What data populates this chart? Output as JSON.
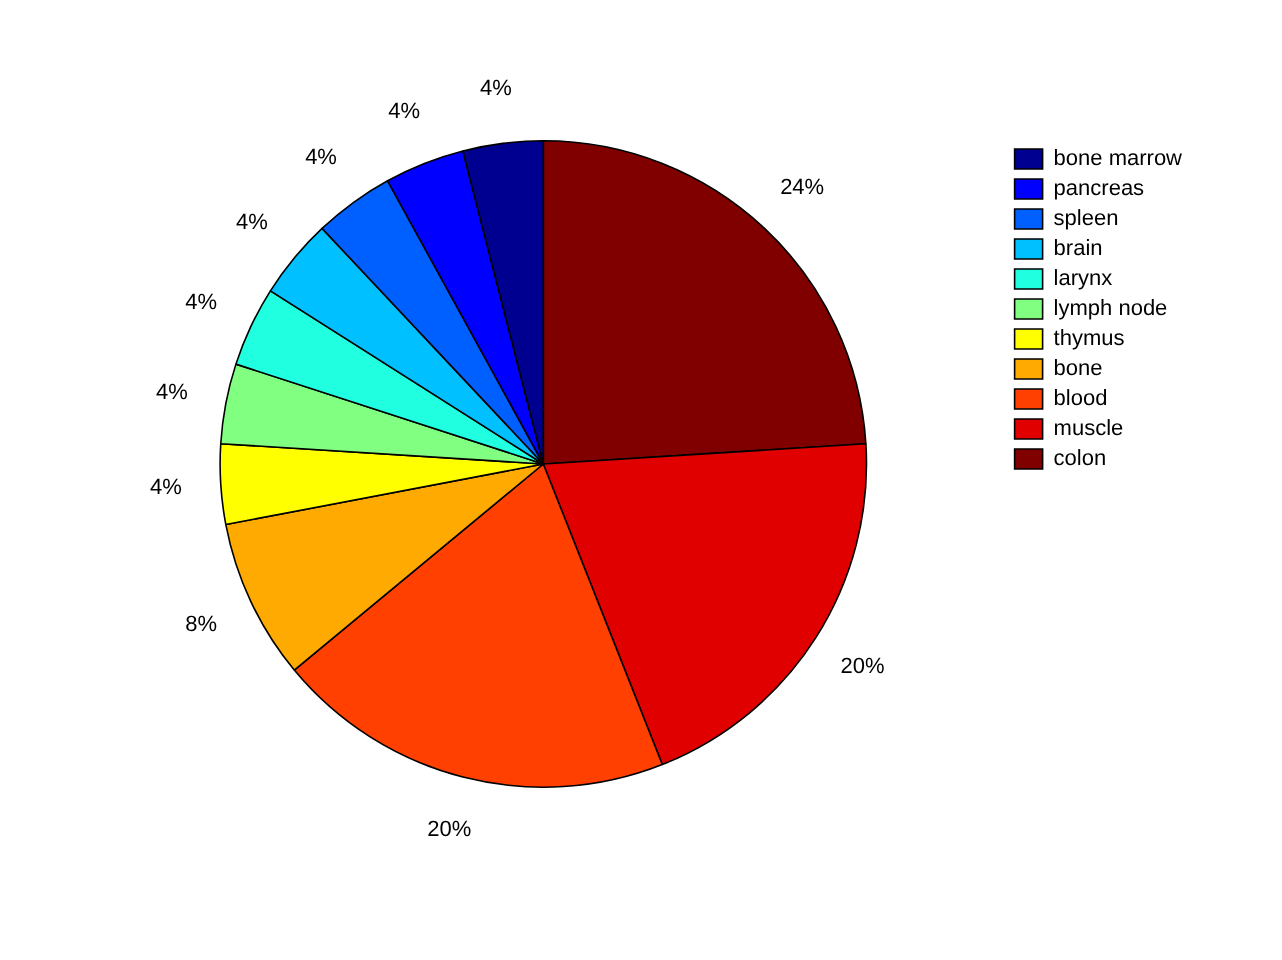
{
  "chart_data": {
    "type": "pie",
    "categories": [
      "colon",
      "muscle",
      "blood",
      "bone",
      "thymus",
      "lymph node",
      "larynx",
      "brain",
      "spleen",
      "pancreas",
      "bone marrow"
    ],
    "values": [
      24,
      20,
      20,
      8,
      4,
      4,
      4,
      4,
      4,
      4,
      4
    ],
    "value_labels": [
      "24%",
      "20%",
      "20%",
      "8%",
      "4%",
      "4%",
      "4%",
      "4%",
      "4%",
      "4%",
      "4%"
    ],
    "colors": [
      "#800000",
      "#e00000",
      "#ff4000",
      "#ffaa00",
      "#ffff00",
      "#80ff80",
      "#20ffe0",
      "#00c0ff",
      "#0060ff",
      "#0000ff",
      "#000090"
    ],
    "legend": "top right"
  }
}
